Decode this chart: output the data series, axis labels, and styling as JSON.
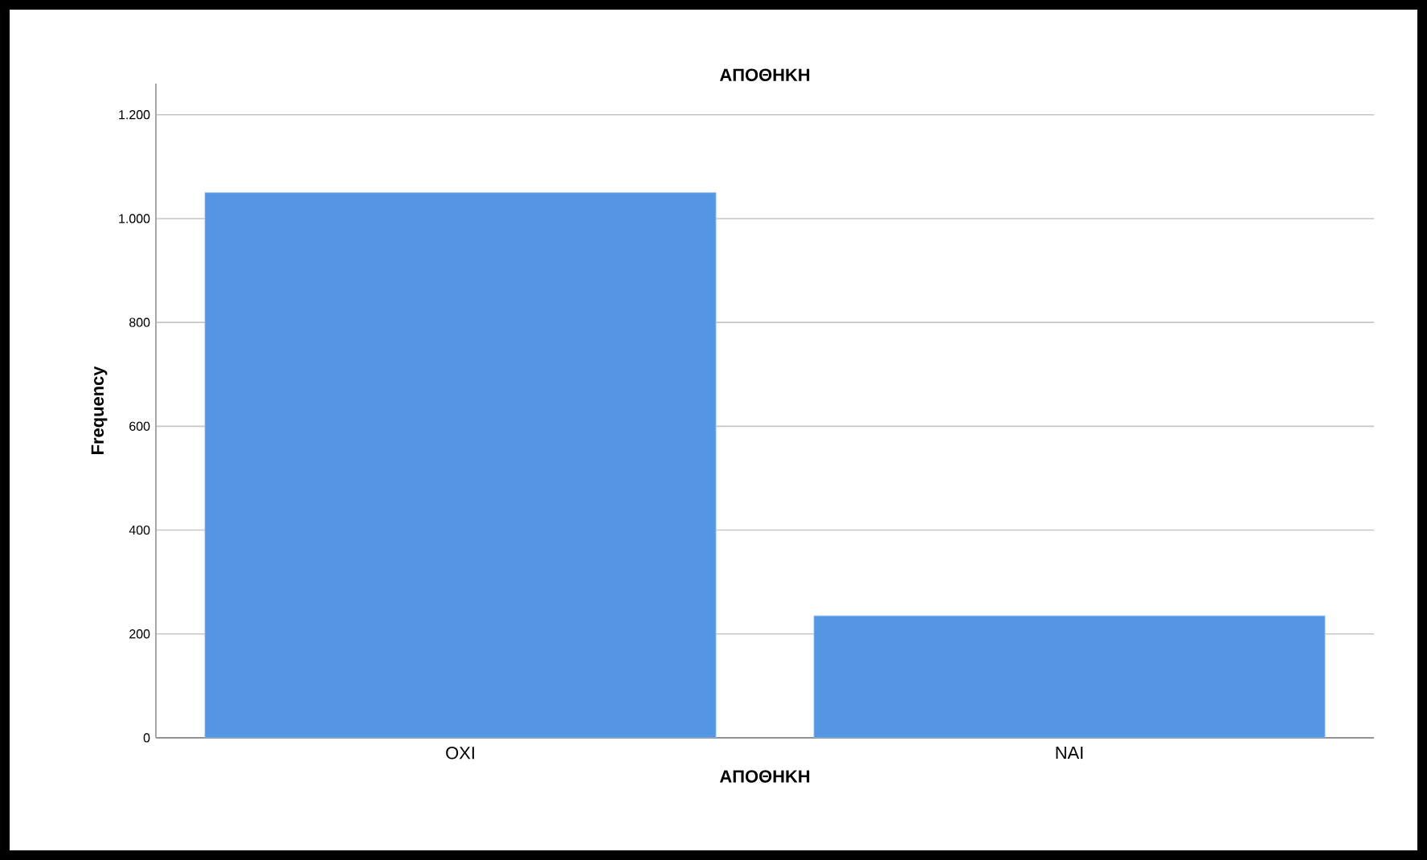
{
  "chart_data": {
    "type": "bar",
    "title": "ΑΠΟΘΗΚΗ",
    "xlabel": "ΑΠΟΘΗΚΗ",
    "ylabel": "Frequency",
    "categories": [
      "ΟΧΙ",
      "ΝΑΙ"
    ],
    "values": [
      1050,
      235
    ],
    "color": "#5596e4",
    "ylim": [
      0,
      1260
    ],
    "yticks": [
      0,
      200,
      400,
      600,
      800,
      {
        "value": 1000,
        "label": "1.000"
      },
      {
        "value": 1200,
        "label": "1.200"
      }
    ],
    "grid": "y"
  }
}
